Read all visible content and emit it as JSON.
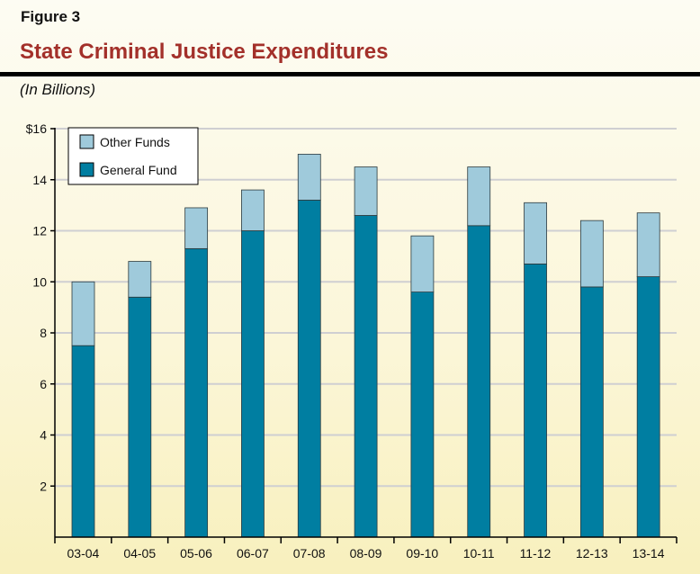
{
  "figure_label": "Figure 3",
  "chart_data": {
    "type": "bar",
    "stacked": true,
    "title": "State Criminal Justice Expenditures",
    "subtitle": "(In Billions)",
    "xlabel": "",
    "ylabel": "",
    "categories": [
      "03-04",
      "04-05",
      "05-06",
      "06-07",
      "07-08",
      "08-09",
      "09-10",
      "10-11",
      "11-12",
      "12-13",
      "13-14"
    ],
    "series": [
      {
        "name": "General Fund",
        "color": "#007ea1",
        "values": [
          7.5,
          9.4,
          11.3,
          12.0,
          13.2,
          12.6,
          9.6,
          12.2,
          10.7,
          9.8,
          10.2
        ]
      },
      {
        "name": "Other Funds",
        "color": "#9fcadb",
        "values": [
          2.5,
          1.4,
          1.6,
          1.6,
          1.8,
          1.9,
          2.2,
          2.3,
          2.4,
          2.6,
          2.5
        ]
      }
    ],
    "ylim": [
      0,
      16
    ],
    "yticks": [
      2,
      4,
      6,
      8,
      10,
      12,
      14,
      16
    ],
    "ytick_labels": [
      "2",
      "4",
      "6",
      "8",
      "10",
      "12",
      "14",
      "$16"
    ],
    "grid": true,
    "legend": {
      "placement": "top-left",
      "order": [
        "Other Funds",
        "General Fund"
      ]
    }
  }
}
